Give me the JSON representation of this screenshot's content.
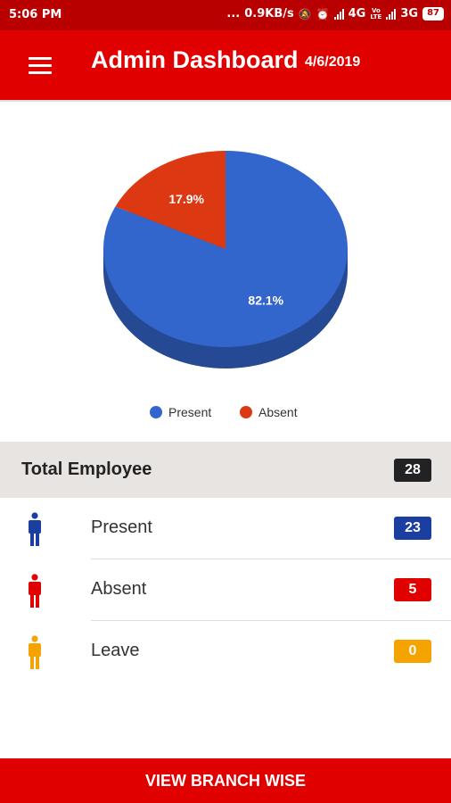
{
  "status_bar": {
    "time": "5:06 PM",
    "dots": "...",
    "net_speed": "0.9KB/s",
    "network_1": "4G",
    "volte": "Vo LTE",
    "network_2": "3G",
    "battery": "87"
  },
  "app_bar": {
    "title": "Admin Dashboard",
    "date": "4/6/2019"
  },
  "chart_data": {
    "type": "pie",
    "style": "3d",
    "categories": [
      "Present",
      "Absent"
    ],
    "values": [
      82.1,
      17.9
    ],
    "labels": [
      "82.1%",
      "17.9%"
    ],
    "colors": [
      "#3366cc",
      "#dc3912"
    ],
    "legend_position": "bottom"
  },
  "summary": {
    "total_label": "Total Employee",
    "total_count": "28",
    "rows": [
      {
        "label": "Present",
        "count": "23",
        "color": "#1a3fa0"
      },
      {
        "label": "Absent",
        "count": "5",
        "color": "#e00000"
      },
      {
        "label": "Leave",
        "count": "0",
        "color": "#f5a300"
      }
    ]
  },
  "footer": {
    "button_label": "VIEW BRANCH WISE"
  }
}
